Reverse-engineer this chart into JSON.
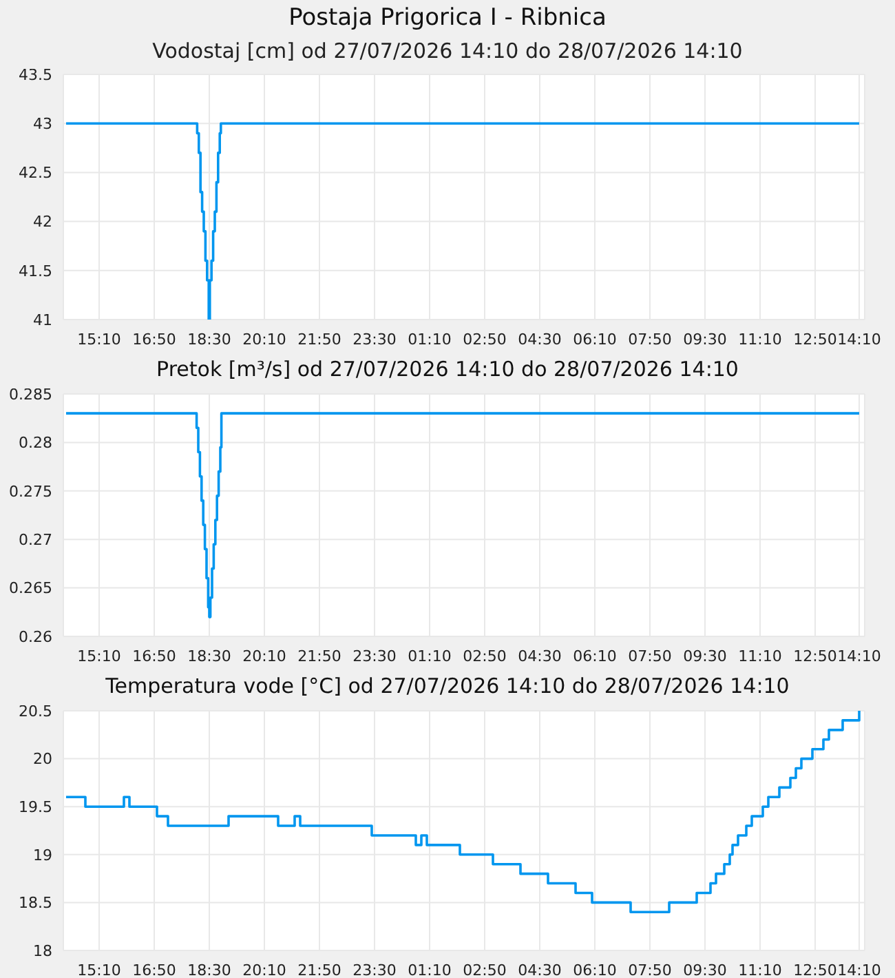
{
  "chart_data": [
    {
      "type": "step",
      "title": "Postaja Prigorica I - Ribnica",
      "subtitle": "Vodostaj [cm] od 27/07/2026 14:10 do 28/07/2026 14:10",
      "x": [
        "2026-07-27T14:10",
        "2026-07-27T18:08",
        "2026-07-27T18:11",
        "2026-07-27T18:14",
        "2026-07-27T18:17",
        "2026-07-27T18:20",
        "2026-07-27T18:23",
        "2026-07-27T18:26",
        "2026-07-27T18:29",
        "2026-07-27T18:31",
        "2026-07-27T18:34",
        "2026-07-27T18:37",
        "2026-07-27T18:40",
        "2026-07-27T18:43",
        "2026-07-27T18:46",
        "2026-07-27T18:49",
        "2026-07-27T18:51",
        "2026-07-28T14:10"
      ],
      "series": [
        {
          "color": "#0096ef",
          "values": [
            43,
            42.9,
            42.7,
            42.3,
            42.1,
            41.9,
            41.6,
            41.4,
            41,
            41.4,
            41.6,
            41.9,
            42.1,
            42.4,
            42.7,
            42.9,
            43,
            43
          ]
        }
      ],
      "xlim": [
        "2026-07-27T14:05",
        "2026-07-28T14:20"
      ],
      "ylim": [
        41,
        43.5
      ],
      "yticks": [
        41,
        41.5,
        42,
        42.5,
        43,
        43.5
      ],
      "xticks": [
        {
          "value": "2026-07-27T15:10",
          "label": "15:10"
        },
        {
          "value": "2026-07-27T16:50",
          "label": "16:50"
        },
        {
          "value": "2026-07-27T18:30",
          "label": "18:30"
        },
        {
          "value": "2026-07-27T20:10",
          "label": "20:10"
        },
        {
          "value": "2026-07-27T21:50",
          "label": "21:50"
        },
        {
          "value": "2026-07-27T23:30",
          "label": "23:30"
        },
        {
          "value": "2026-07-28T01:10",
          "label": "01:10"
        },
        {
          "value": "2026-07-28T02:50",
          "label": "02:50"
        },
        {
          "value": "2026-07-28T04:30",
          "label": "04:30"
        },
        {
          "value": "2026-07-28T06:10",
          "label": "06:10"
        },
        {
          "value": "2026-07-28T07:50",
          "label": "07:50"
        },
        {
          "value": "2026-07-28T09:30",
          "label": "09:30"
        },
        {
          "value": "2026-07-28T11:10",
          "label": "11:10"
        },
        {
          "value": "2026-07-28T12:50",
          "label": "12:50"
        },
        {
          "value": "2026-07-28T14:10",
          "label": "14:10"
        }
      ],
      "grid": true
    },
    {
      "type": "step",
      "title": "Pretok [m³/s] od 27/07/2026 14:10 do 28/07/2026 14:10",
      "x": [
        "2026-07-27T14:10",
        "2026-07-27T18:07",
        "2026-07-27T18:10",
        "2026-07-27T18:13",
        "2026-07-27T18:16",
        "2026-07-27T18:19",
        "2026-07-27T18:22",
        "2026-07-27T18:25",
        "2026-07-27T18:28",
        "2026-07-27T18:30",
        "2026-07-27T18:32",
        "2026-07-27T18:35",
        "2026-07-27T18:38",
        "2026-07-27T18:41",
        "2026-07-27T18:44",
        "2026-07-27T18:47",
        "2026-07-27T18:50",
        "2026-07-27T18:52",
        "2026-07-28T14:10"
      ],
      "series": [
        {
          "color": "#0096ef",
          "values": [
            0.283,
            0.2815,
            0.279,
            0.2765,
            0.274,
            0.2715,
            0.269,
            0.266,
            0.263,
            0.262,
            0.264,
            0.267,
            0.2695,
            0.272,
            0.2745,
            0.277,
            0.2795,
            0.283,
            0.283
          ]
        }
      ],
      "xlim": [
        "2026-07-27T14:05",
        "2026-07-28T14:20"
      ],
      "ylim": [
        0.26,
        0.285
      ],
      "yticks": [
        0.26,
        0.265,
        0.27,
        0.275,
        0.28,
        0.285
      ],
      "xticks": [
        {
          "value": "2026-07-27T15:10",
          "label": "15:10"
        },
        {
          "value": "2026-07-27T16:50",
          "label": "16:50"
        },
        {
          "value": "2026-07-27T18:30",
          "label": "18:30"
        },
        {
          "value": "2026-07-27T20:10",
          "label": "20:10"
        },
        {
          "value": "2026-07-27T21:50",
          "label": "21:50"
        },
        {
          "value": "2026-07-27T23:30",
          "label": "23:30"
        },
        {
          "value": "2026-07-28T01:10",
          "label": "01:10"
        },
        {
          "value": "2026-07-28T02:50",
          "label": "02:50"
        },
        {
          "value": "2026-07-28T04:30",
          "label": "04:30"
        },
        {
          "value": "2026-07-28T06:10",
          "label": "06:10"
        },
        {
          "value": "2026-07-28T07:50",
          "label": "07:50"
        },
        {
          "value": "2026-07-28T09:30",
          "label": "09:30"
        },
        {
          "value": "2026-07-28T11:10",
          "label": "11:10"
        },
        {
          "value": "2026-07-28T12:50",
          "label": "12:50"
        },
        {
          "value": "2026-07-28T14:10",
          "label": "14:10"
        }
      ],
      "grid": true
    },
    {
      "type": "step",
      "title": "Temperatura vode [°C] od 27/07/2026 14:10 do 28/07/2026 14:10",
      "x": [
        "2026-07-27T14:10",
        "2026-07-27T14:45",
        "2026-07-27T15:55",
        "2026-07-27T16:05",
        "2026-07-27T16:55",
        "2026-07-27T17:15",
        "2026-07-27T19:05",
        "2026-07-27T20:35",
        "2026-07-27T21:05",
        "2026-07-27T21:15",
        "2026-07-27T23:25",
        "2026-07-28T00:45",
        "2026-07-28T00:55",
        "2026-07-28T01:05",
        "2026-07-28T02:05",
        "2026-07-28T03:05",
        "2026-07-28T03:55",
        "2026-07-28T04:45",
        "2026-07-28T05:35",
        "2026-07-28T06:05",
        "2026-07-28T07:15",
        "2026-07-28T08:25",
        "2026-07-28T09:15",
        "2026-07-28T09:40",
        "2026-07-28T09:50",
        "2026-07-28T10:05",
        "2026-07-28T10:15",
        "2026-07-28T10:20",
        "2026-07-28T10:30",
        "2026-07-28T10:45",
        "2026-07-28T10:55",
        "2026-07-28T11:15",
        "2026-07-28T11:25",
        "2026-07-28T11:45",
        "2026-07-28T12:05",
        "2026-07-28T12:15",
        "2026-07-28T12:25",
        "2026-07-28T12:45",
        "2026-07-28T13:05",
        "2026-07-28T13:15",
        "2026-07-28T13:40",
        "2026-07-28T14:10"
      ],
      "series": [
        {
          "color": "#0096ef",
          "values": [
            19.6,
            19.5,
            19.6,
            19.5,
            19.4,
            19.3,
            19.4,
            19.3,
            19.4,
            19.3,
            19.2,
            19.1,
            19.2,
            19.1,
            19.0,
            18.9,
            18.8,
            18.7,
            18.6,
            18.5,
            18.4,
            18.5,
            18.6,
            18.7,
            18.8,
            18.9,
            19.0,
            19.1,
            19.2,
            19.3,
            19.4,
            19.5,
            19.6,
            19.7,
            19.8,
            19.9,
            20.0,
            20.1,
            20.2,
            20.3,
            20.4,
            20.5
          ]
        }
      ],
      "xlim": [
        "2026-07-27T14:05",
        "2026-07-28T14:20"
      ],
      "ylim": [
        18,
        20.5
      ],
      "yticks": [
        18,
        18.5,
        19,
        19.5,
        20,
        20.5
      ],
      "xticks": [
        {
          "value": "2026-07-27T15:10",
          "label": "15:10"
        },
        {
          "value": "2026-07-27T16:50",
          "label": "16:50"
        },
        {
          "value": "2026-07-27T18:30",
          "label": "18:30"
        },
        {
          "value": "2026-07-27T20:10",
          "label": "20:10"
        },
        {
          "value": "2026-07-27T21:50",
          "label": "21:50"
        },
        {
          "value": "2026-07-27T23:30",
          "label": "23:30"
        },
        {
          "value": "2026-07-28T01:10",
          "label": "01:10"
        },
        {
          "value": "2026-07-28T02:50",
          "label": "02:50"
        },
        {
          "value": "2026-07-28T04:30",
          "label": "04:30"
        },
        {
          "value": "2026-07-28T06:10",
          "label": "06:10"
        },
        {
          "value": "2026-07-28T07:50",
          "label": "07:50"
        },
        {
          "value": "2026-07-28T09:30",
          "label": "09:30"
        },
        {
          "value": "2026-07-28T11:10",
          "label": "11:10"
        },
        {
          "value": "2026-07-28T12:50",
          "label": "12:50"
        },
        {
          "value": "2026-07-28T14:10",
          "label": "14:10"
        }
      ],
      "grid": true
    }
  ]
}
